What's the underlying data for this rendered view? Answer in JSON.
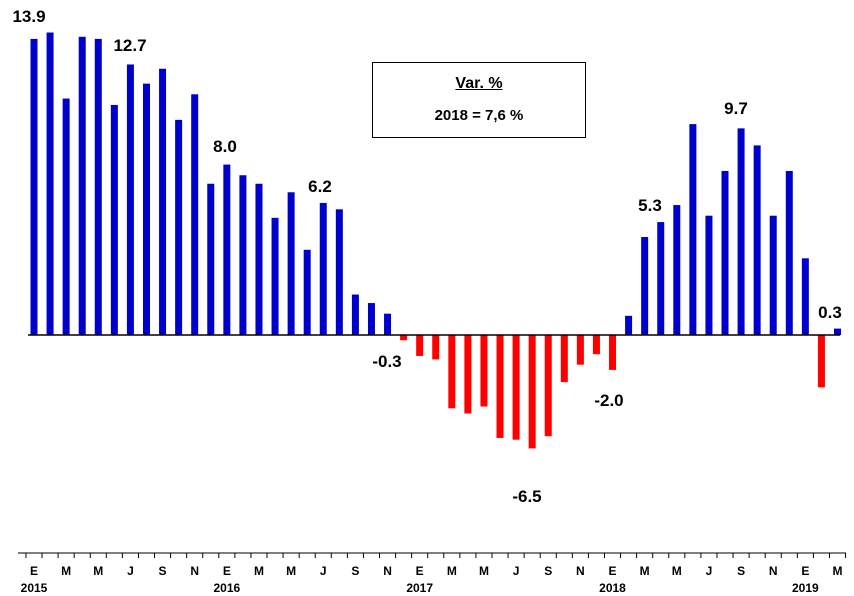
{
  "colors": {
    "positive": "#0000CC",
    "negative": "#FF0000",
    "axis": "#000000"
  },
  "annotation": {
    "title": "Var. %",
    "subtitle": "2018 = 7,6 %"
  },
  "chart_data": {
    "type": "bar",
    "title": "",
    "xlabel": "",
    "ylabel": "",
    "ylim": [
      -9.8,
      14.6
    ],
    "grid": false,
    "legend": "none",
    "categories": [
      "2015-01",
      "2015-02",
      "2015-03",
      "2015-04",
      "2015-05",
      "2015-06",
      "2015-07",
      "2015-08",
      "2015-09",
      "2015-10",
      "2015-11",
      "2015-12",
      "2016-01",
      "2016-02",
      "2016-03",
      "2016-04",
      "2016-05",
      "2016-06",
      "2016-07",
      "2016-08",
      "2016-09",
      "2016-10",
      "2016-11",
      "2016-12",
      "2017-01",
      "2017-02",
      "2017-03",
      "2017-04",
      "2017-05",
      "2017-06",
      "2017-07",
      "2017-08",
      "2017-09",
      "2017-10",
      "2017-11",
      "2017-12",
      "2018-01",
      "2018-02",
      "2018-03",
      "2018-04",
      "2018-05",
      "2018-06",
      "2018-07",
      "2018-08",
      "2018-09",
      "2018-10",
      "2018-11",
      "2018-12",
      "2019-01",
      "2019-02",
      "2019-03"
    ],
    "values": [
      13.9,
      14.2,
      11.1,
      14.0,
      13.9,
      10.8,
      12.7,
      11.8,
      12.5,
      10.1,
      11.3,
      7.1,
      8.0,
      7.5,
      7.1,
      5.5,
      6.7,
      4.0,
      6.2,
      5.9,
      1.9,
      1.5,
      1.0,
      -0.3,
      -1.2,
      -1.4,
      -4.2,
      -4.5,
      -4.1,
      -5.9,
      -6.0,
      -6.5,
      -5.8,
      -2.7,
      -1.7,
      -1.1,
      -2.0,
      0.9,
      4.6,
      5.3,
      6.1,
      9.9,
      5.6,
      7.7,
      9.7,
      8.9,
      5.6,
      7.7,
      3.6,
      -3.0,
      0.3
    ],
    "data_labels": [
      {
        "index": 0,
        "text": "13.9"
      },
      {
        "index": 6,
        "text": "12.7"
      },
      {
        "index": 12,
        "text": "8.0"
      },
      {
        "index": 18,
        "text": "6.2"
      },
      {
        "index": 23,
        "text": "-0.3"
      },
      {
        "index": 31,
        "text": "-6.5"
      },
      {
        "index": 36,
        "text": "-2.0"
      },
      {
        "index": 39,
        "text": "5.3"
      },
      {
        "index": 44,
        "text": "9.7"
      },
      {
        "index": 50,
        "text": "0.3"
      }
    ],
    "month_ticks": [
      "E",
      "M",
      "M",
      "J",
      "S",
      "N",
      "E",
      "M",
      "M",
      "J",
      "S",
      "N",
      "E",
      "M",
      "M",
      "J",
      "S",
      "N",
      "E",
      "M",
      "M",
      "J",
      "S",
      "N",
      "E",
      "M"
    ],
    "year_labels": [
      {
        "index": 0,
        "text": "2015"
      },
      {
        "index": 12,
        "text": "2016"
      },
      {
        "index": 24,
        "text": "2017"
      },
      {
        "index": 36,
        "text": "2018"
      },
      {
        "index": 48,
        "text": "2019"
      }
    ]
  }
}
